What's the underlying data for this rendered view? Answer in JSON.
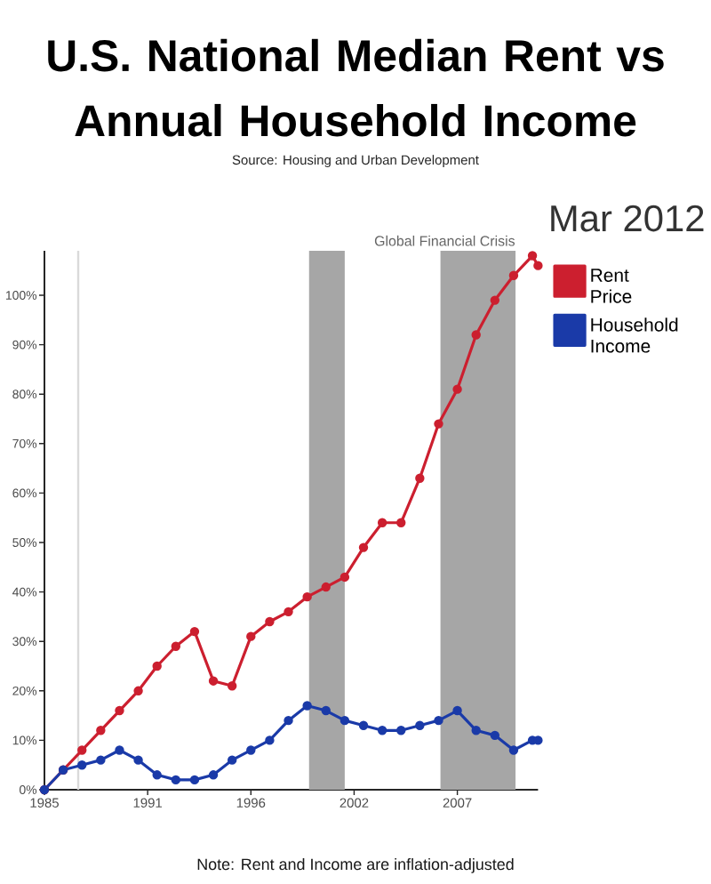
{
  "chart_data": {
    "type": "line",
    "title": "U.S. National Median Rent vs Annual Household Income",
    "subtitle": "Source: Housing and Urban Development",
    "annotations": [
      "Mar 2012",
      "Note: Rent and Income are inflation-adjusted"
    ],
    "x": [
      1985,
      1986,
      1987,
      1988,
      1989,
      1990,
      1991,
      1992,
      1993,
      1994,
      1995,
      1996,
      1997,
      1998,
      1999,
      2000,
      2001,
      2002,
      2003,
      2004,
      2005,
      2006,
      2007,
      2008,
      2009,
      2010,
      2011,
      2011.3
    ],
    "series": [
      {
        "name": "Rent Price",
        "color": "#cc1f2f",
        "values": [
          0,
          4,
          8,
          12,
          16,
          20,
          25,
          29,
          32,
          22,
          21,
          31,
          34,
          36,
          39,
          41,
          43,
          49,
          54,
          54,
          63,
          74,
          81,
          92,
          99,
          104,
          108,
          106
        ]
      },
      {
        "name": "Household Income",
        "color": "#1a3aa8",
        "values": [
          0,
          4,
          5,
          6,
          8,
          6,
          3,
          2,
          2,
          3,
          6,
          8,
          10,
          14,
          17,
          16,
          14,
          13,
          12,
          12,
          13,
          14,
          16,
          12,
          11,
          8,
          10,
          10
        ]
      }
    ],
    "xlim": [
      1985,
      2011.3
    ],
    "xticks": [
      1985,
      {
        "value": 1990.5,
        "label": "1991"
      },
      1996,
      {
        "value": 2001.5,
        "label": "2002"
      },
      2007
    ],
    "ylim": [
      0,
      109
    ],
    "yticks": [
      {
        "value": 0,
        "label": "0%"
      },
      {
        "value": 10,
        "label": "10%"
      },
      {
        "value": 20,
        "label": "20%"
      },
      {
        "value": 30,
        "label": "30%"
      },
      {
        "value": 40,
        "label": "40%"
      },
      {
        "value": 50,
        "label": "50%"
      },
      {
        "value": 60,
        "label": "60%"
      },
      {
        "value": 70,
        "label": "70%"
      },
      {
        "value": 80,
        "label": "80%"
      },
      {
        "value": 90,
        "label": "90%"
      },
      {
        "value": 100,
        "label": "100%"
      }
    ],
    "bands": [
      {
        "axis": "x",
        "from": 1999.1,
        "to": 2001,
        "color": "#a6a6a6"
      },
      {
        "axis": "x",
        "from": 2006.1,
        "to": 2010.1,
        "label": "Global Financial Crisis",
        "color": "#a6a6a6"
      }
    ],
    "ref_lines": [
      {
        "axis": "x",
        "value": 1986.8,
        "color": "#dadada"
      }
    ],
    "legend": "right",
    "marker": "circle",
    "line_style": "solid"
  }
}
